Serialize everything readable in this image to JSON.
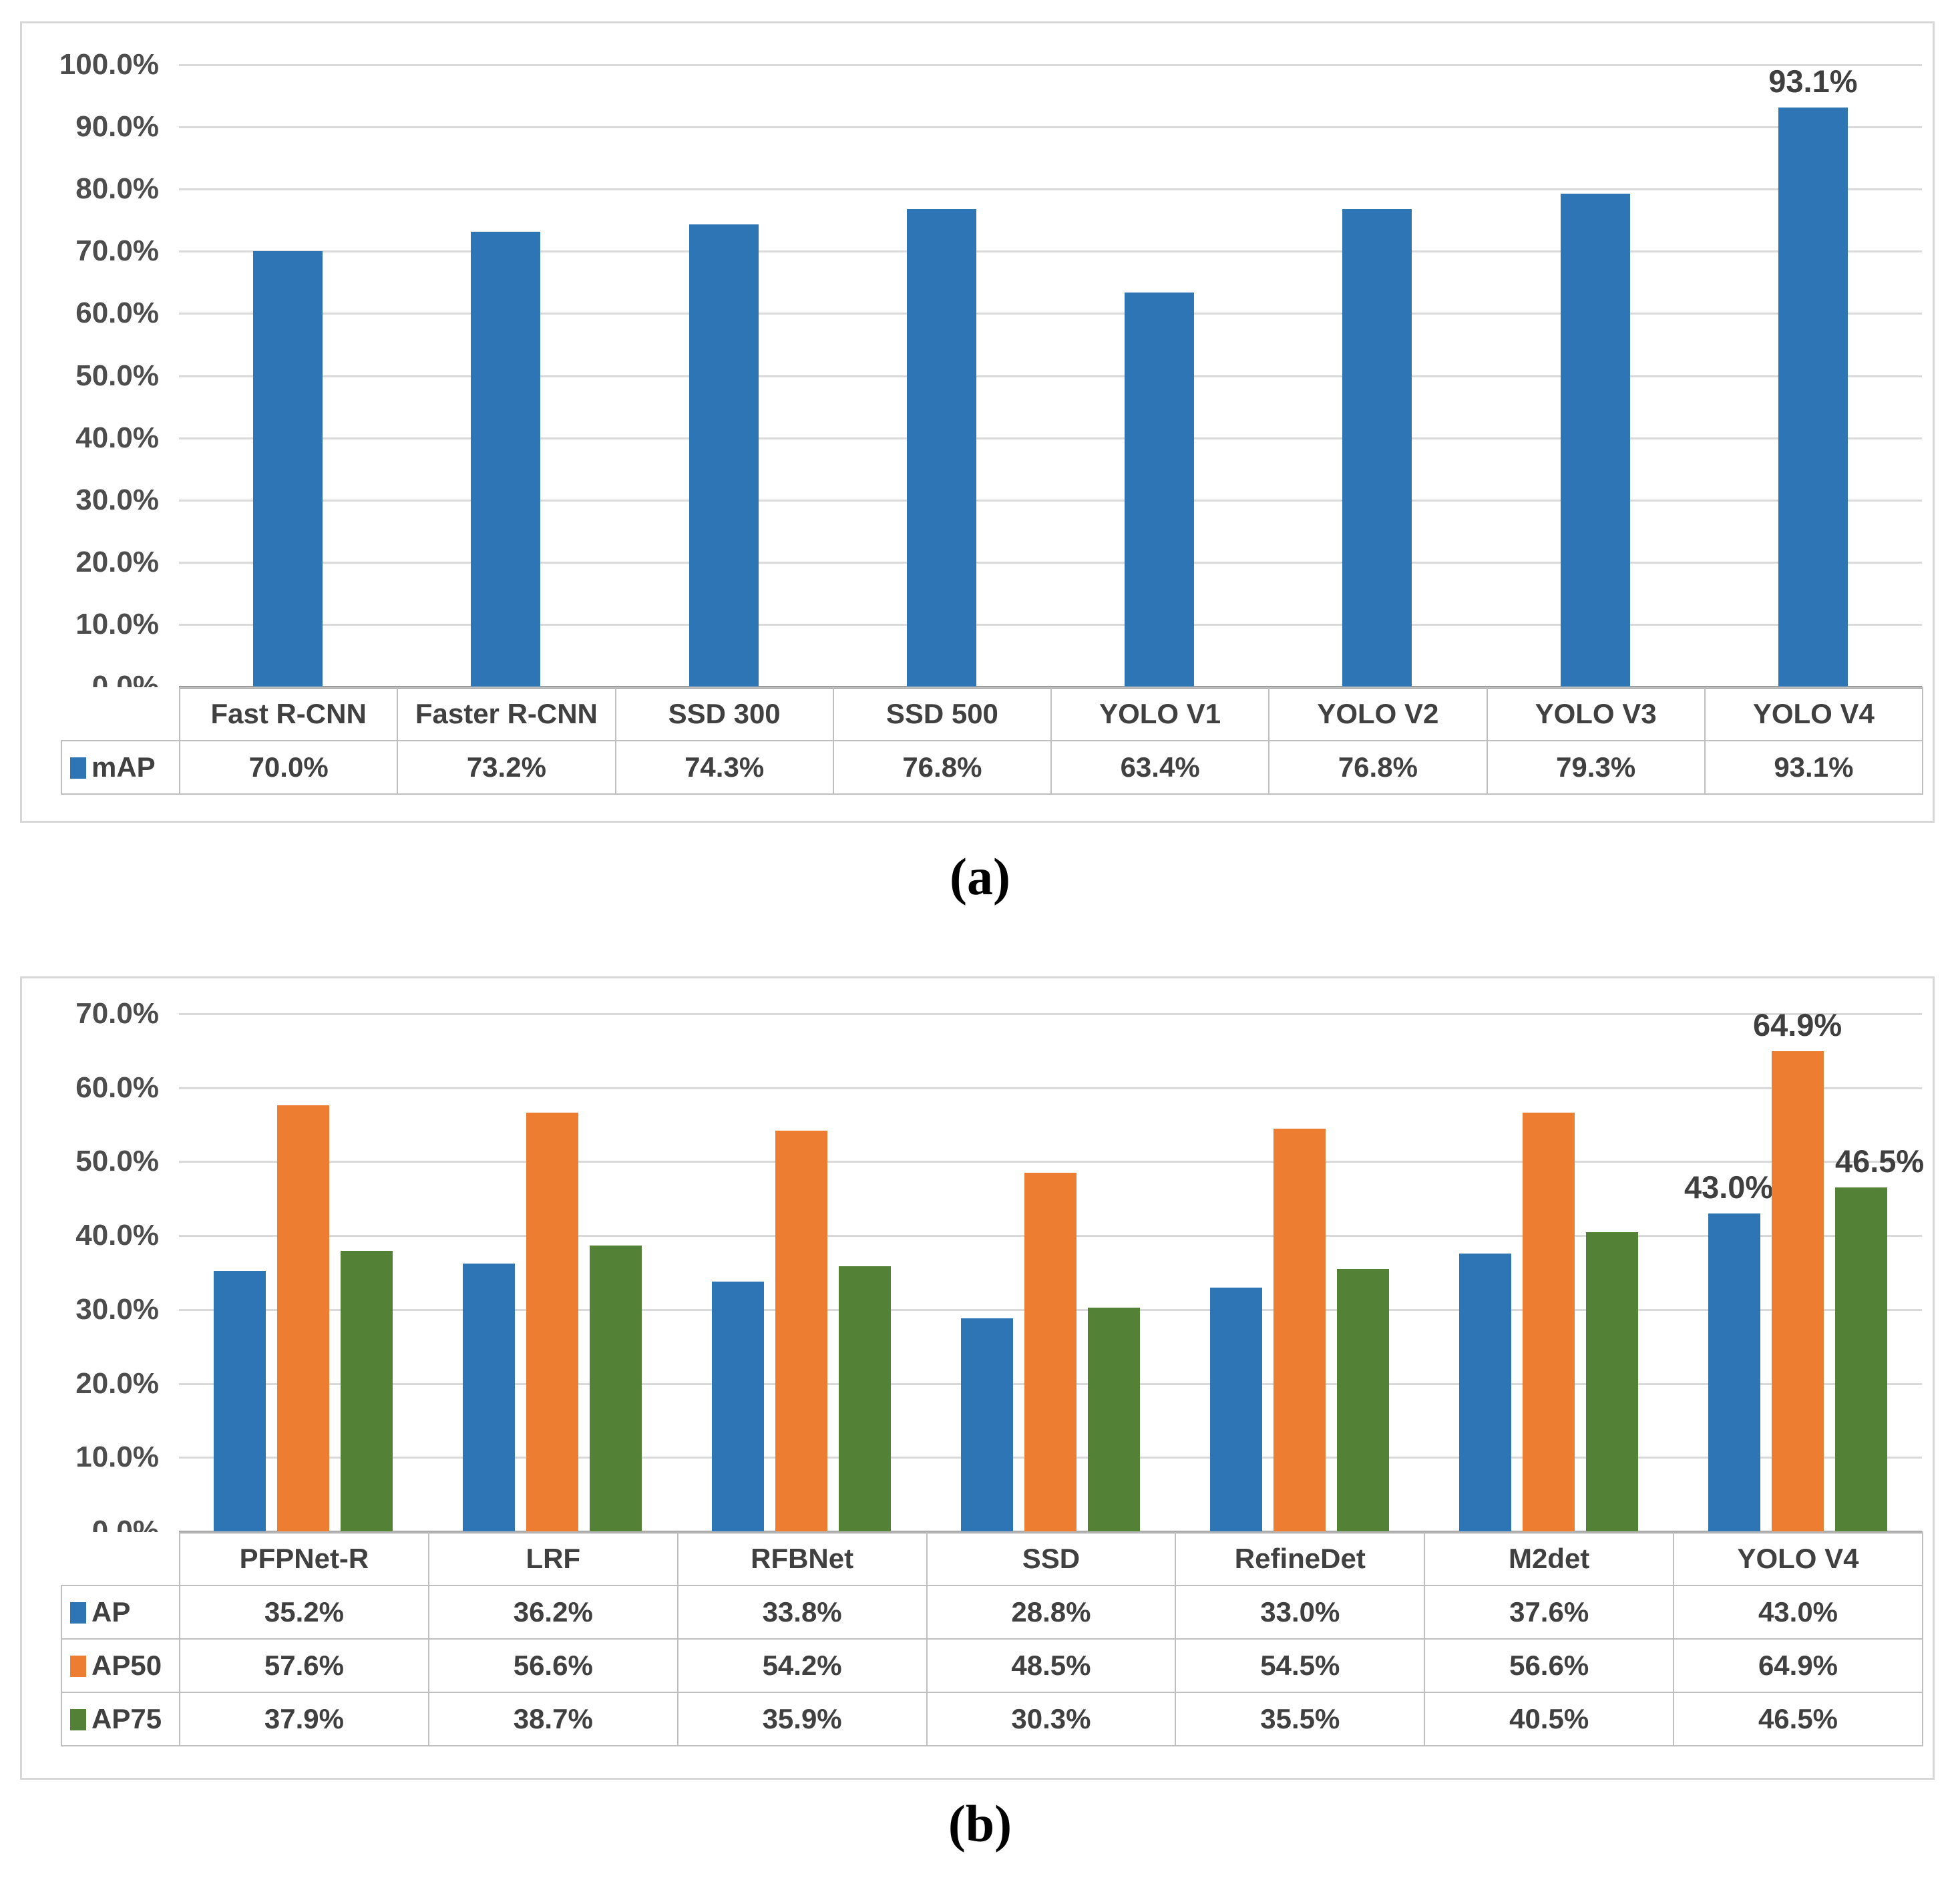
{
  "captions": {
    "a": "(a)",
    "b": "(b)"
  },
  "colors": {
    "blue": "#2E75B6",
    "orange": "#ED7D31",
    "green": "#538135",
    "gridline": "#D9D9D9",
    "axis": "#808080",
    "table_border": "#BFBFBF"
  },
  "chart_data": [
    {
      "id": "a",
      "type": "bar",
      "title": "",
      "xlabel": "",
      "ylabel": "",
      "grid": true,
      "legend_position": "table-left-stub",
      "categories": [
        "Fast R-CNN",
        "Faster R-CNN",
        "SSD 300",
        "SSD 500",
        "YOLO V1",
        "YOLO V2",
        "YOLO V3",
        "YOLO V4"
      ],
      "series": [
        {
          "name": "mAP",
          "color": "#2E75B6",
          "values": [
            70.0,
            73.2,
            74.3,
            76.8,
            63.4,
            76.8,
            79.3,
            93.1
          ],
          "values_fmt": [
            "70.0%",
            "73.2%",
            "74.3%",
            "76.8%",
            "63.4%",
            "76.8%",
            "79.3%",
            "93.1%"
          ]
        }
      ],
      "ylim": [
        0,
        100
      ],
      "yticks_top_to_bottom": [
        "100.0%",
        "90.0%",
        "80.0%",
        "70.0%",
        "60.0%",
        "50.0%",
        "40.0%",
        "30.0%",
        "20.0%",
        "10.0%",
        "0.0%"
      ],
      "data_labels": [
        {
          "series": 0,
          "category": 7,
          "text": "93.1%",
          "dx": 0
        }
      ]
    },
    {
      "id": "b",
      "type": "bar",
      "title": "",
      "xlabel": "",
      "ylabel": "",
      "grid": true,
      "legend_position": "table-left-stub",
      "categories": [
        "PFPNet-R",
        "LRF",
        "RFBNet",
        "SSD",
        "RefineDet",
        "M2det",
        "YOLO V4"
      ],
      "series": [
        {
          "name": "AP",
          "color": "#2E75B6",
          "values": [
            35.2,
            36.2,
            33.8,
            28.8,
            33.0,
            37.6,
            43.0
          ],
          "values_fmt": [
            "35.2%",
            "36.2%",
            "33.8%",
            "28.8%",
            "33.0%",
            "37.6%",
            "43.0%"
          ]
        },
        {
          "name": "AP50",
          "color": "#ED7D31",
          "values": [
            57.6,
            56.6,
            54.2,
            48.5,
            54.5,
            56.6,
            64.9
          ],
          "values_fmt": [
            "57.6%",
            "56.6%",
            "54.2%",
            "48.5%",
            "54.5%",
            "56.6%",
            "64.9%"
          ]
        },
        {
          "name": "AP75",
          "color": "#538135",
          "values": [
            37.9,
            38.7,
            35.9,
            30.3,
            35.5,
            40.5,
            46.5
          ],
          "values_fmt": [
            "37.9%",
            "38.7%",
            "35.9%",
            "30.3%",
            "35.5%",
            "40.5%",
            "46.5%"
          ]
        }
      ],
      "ylim": [
        0,
        70
      ],
      "yticks_top_to_bottom": [
        "70.0%",
        "60.0%",
        "50.0%",
        "40.0%",
        "30.0%",
        "20.0%",
        "10.0%",
        "0.0%"
      ],
      "data_labels": [
        {
          "series": 0,
          "category": 6,
          "text": "43.0%",
          "dx": -8
        },
        {
          "series": 1,
          "category": 6,
          "text": "64.9%",
          "dx": 0
        },
        {
          "series": 2,
          "category": 6,
          "text": "46.5%",
          "dx": 28
        }
      ]
    }
  ]
}
